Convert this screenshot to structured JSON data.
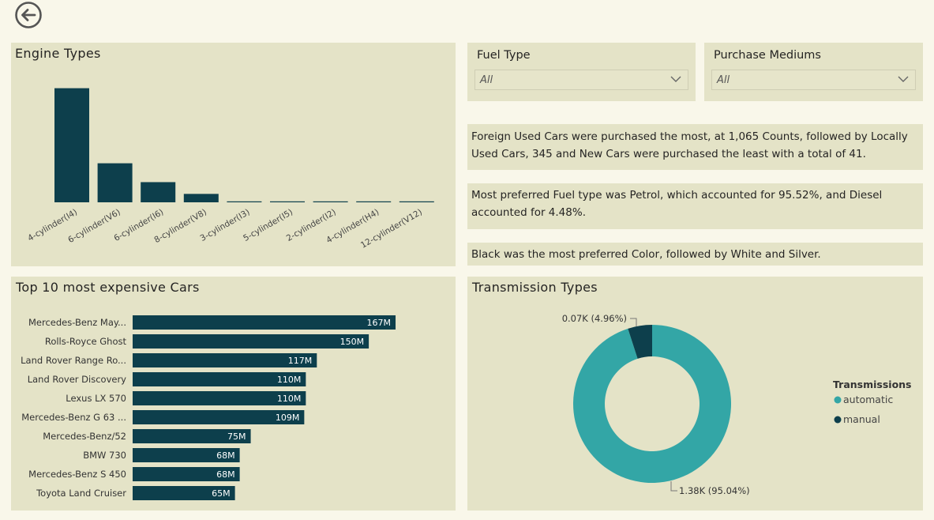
{
  "nav": {
    "back_icon": "back-arrow-circle-icon"
  },
  "engine_panel": {
    "title": "Engine Types"
  },
  "filters": {
    "fuel_type": {
      "title": "Fuel Type",
      "value": "All"
    },
    "purchase_mediums": {
      "title": "Purchase Mediums",
      "value": "All"
    }
  },
  "insights": [
    "Foreign Used Cars were purchased the most, at 1,065 Counts, followed by Locally Used Cars, 345 and New Cars were purchased the least with a total of 41.",
    "Most preferred Fuel type was Petrol, which accounted for 95.52%, and Diesel accounted for 4.48%.",
    "Black was the most preferred Color, followed by White and Silver."
  ],
  "cars_panel": {
    "title": "Top 10 most expensive Cars"
  },
  "transmission_panel": {
    "title": "Transmission Types",
    "legend_title": "Transmissions"
  },
  "colors": {
    "bar": "#0d3f4c",
    "automatic": "#33a6a6",
    "manual": "#0d3f4c"
  },
  "chart_data": [
    {
      "type": "bar",
      "title": "Engine Types",
      "categories": [
        "4-cylinder(I4)",
        "6-cylinder(V6)",
        "6-cylinder(I6)",
        "8-cylinder(V8)",
        "3-cylinder(I3)",
        "5-cylinder(I5)",
        "2-cylinder(I2)",
        "4-cylinder(H4)",
        "12-cylinder(V12)"
      ],
      "values": [
        950,
        325,
        168,
        70,
        4,
        3,
        2,
        2,
        1
      ],
      "ylim": [
        0,
        1000
      ],
      "grid": false
    },
    {
      "type": "bar",
      "orientation": "horizontal",
      "title": "Top 10 most expensive Cars",
      "categories": [
        "Mercedes-Benz May...",
        "Rolls-Royce Ghost",
        "Land Rover Range Ro...",
        "Land Rover Discovery",
        "Lexus LX 570",
        "Mercedes-Benz G 63 ...",
        "Mercedes-Benz/52",
        "BMW 730",
        "Mercedes-Benz S 450",
        "Toyota Land Cruiser"
      ],
      "values": [
        167,
        150,
        117,
        110,
        110,
        109,
        75,
        68,
        68,
        65
      ],
      "labels": [
        "167M",
        "150M",
        "117M",
        "110M",
        "110M",
        "109M",
        "75M",
        "68M",
        "68M",
        "65M"
      ],
      "xlim": [
        0,
        170
      ],
      "grid": false
    },
    {
      "type": "pie",
      "donut": true,
      "title": "Transmission Types",
      "categories": [
        "automatic",
        "manual"
      ],
      "values": [
        95.04,
        4.96
      ],
      "labels": [
        "1.38K (95.04%)",
        "0.07K (4.96%)"
      ],
      "legend": "right"
    }
  ]
}
